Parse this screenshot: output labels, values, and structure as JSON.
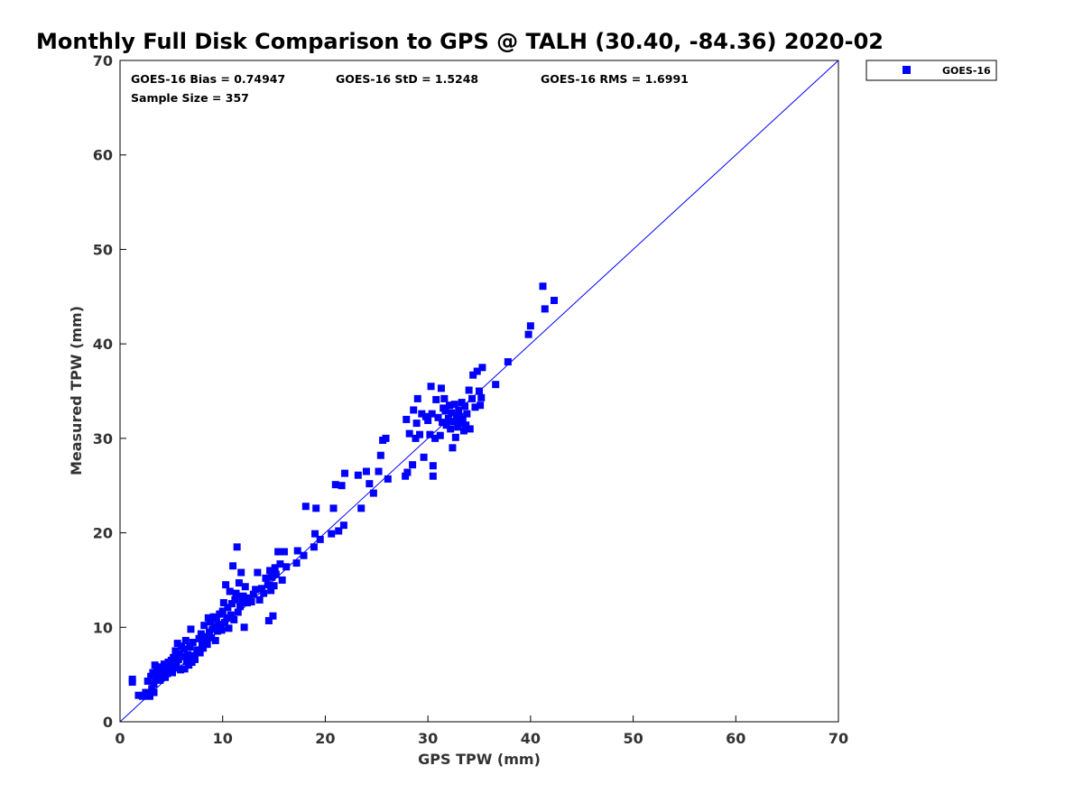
{
  "chart_data": {
    "type": "scatter",
    "title": "Monthly Full Disk Comparison to GPS @ TALH (30.40, -84.36) 2020-02",
    "xlabel": "GPS TPW (mm)",
    "ylabel": "Measured TPW (mm)",
    "xlim": [
      0,
      70
    ],
    "ylim": [
      0,
      70
    ],
    "xticks": [
      "0",
      "10",
      "20",
      "30",
      "40",
      "50",
      "60",
      "70"
    ],
    "yticks": [
      "0",
      "10",
      "20",
      "30",
      "40",
      "50",
      "60",
      "70"
    ],
    "grid": false,
    "legend_position": "outside-top-right",
    "stats": {
      "bias": "GOES-16 Bias = 0.74947",
      "std": "GOES-16 StD = 1.5248",
      "rms": "GOES-16 RMS = 1.6991",
      "sample": "Sample Size = 357"
    },
    "reference_line": {
      "x": [
        0,
        70
      ],
      "y": [
        0,
        70
      ],
      "color": "#0000ff"
    },
    "series": [
      {
        "name": "GOES-16",
        "color": "#0000ff",
        "marker": "square",
        "points": [
          [
            1.2,
            4.5
          ],
          [
            1.2,
            4.2
          ],
          [
            1.8,
            2.8
          ],
          [
            2.2,
            2.7
          ],
          [
            2.5,
            3.1
          ],
          [
            2.6,
            2.8
          ],
          [
            2.8,
            3.0
          ],
          [
            2.9,
            2.7
          ],
          [
            2.7,
            4.3
          ],
          [
            3.0,
            4.8
          ],
          [
            3.1,
            3.5
          ],
          [
            3.2,
            5.2
          ],
          [
            3.3,
            4.0
          ],
          [
            3.4,
            6.0
          ],
          [
            3.5,
            4.6
          ],
          [
            3.6,
            5.5
          ],
          [
            3.3,
            3.1
          ],
          [
            3.8,
            5.0
          ],
          [
            3.9,
            4.4
          ],
          [
            4.0,
            5.8
          ],
          [
            4.1,
            4.9
          ],
          [
            4.2,
            5.3
          ],
          [
            4.3,
            6.1
          ],
          [
            4.4,
            4.7
          ],
          [
            4.5,
            5.6
          ],
          [
            4.6,
            5.1
          ],
          [
            4.7,
            6.3
          ],
          [
            4.8,
            5.4
          ],
          [
            4.9,
            5.9
          ],
          [
            5.0,
            6.5
          ],
          [
            5.1,
            5.2
          ],
          [
            5.2,
            6.8
          ],
          [
            5.3,
            5.7
          ],
          [
            5.4,
            7.5
          ],
          [
            5.5,
            6.1
          ],
          [
            5.6,
            8.3
          ],
          [
            5.7,
            6.6
          ],
          [
            5.8,
            7.2
          ],
          [
            5.9,
            5.5
          ],
          [
            6.0,
            8.0
          ],
          [
            6.1,
            6.9
          ],
          [
            6.2,
            7.7
          ],
          [
            6.3,
            5.6
          ],
          [
            6.4,
            8.6
          ],
          [
            6.5,
            6.4
          ],
          [
            6.6,
            7.1
          ],
          [
            6.7,
            6.0
          ],
          [
            6.8,
            7.9
          ],
          [
            6.9,
            9.8
          ],
          [
            7.0,
            6.3
          ],
          [
            7.1,
            8.4
          ],
          [
            7.2,
            7.0
          ],
          [
            7.3,
            6.6
          ],
          [
            7.5,
            7.6
          ],
          [
            7.7,
            8.8
          ],
          [
            7.8,
            7.3
          ],
          [
            7.9,
            9.3
          ],
          [
            8.0,
            8.1
          ],
          [
            8.1,
            7.8
          ],
          [
            8.2,
            10.2
          ],
          [
            8.3,
            8.6
          ],
          [
            8.4,
            9.0
          ],
          [
            8.5,
            8.2
          ],
          [
            8.6,
            11.0
          ],
          [
            8.7,
            9.5
          ],
          [
            8.8,
            10.6
          ],
          [
            8.9,
            8.9
          ],
          [
            9.0,
            9.8
          ],
          [
            9.1,
            11.1
          ],
          [
            9.2,
            10.1
          ],
          [
            9.3,
            8.6
          ],
          [
            9.4,
            10.9
          ],
          [
            9.5,
            9.6
          ],
          [
            9.6,
            10.3
          ],
          [
            9.7,
            11.4
          ],
          [
            9.8,
            10.0
          ],
          [
            9.9,
            9.7
          ],
          [
            10.0,
            11.7
          ],
          [
            10.1,
            12.6
          ],
          [
            10.2,
            10.5
          ],
          [
            10.3,
            14.5
          ],
          [
            10.4,
            11.0
          ],
          [
            10.5,
            12.1
          ],
          [
            10.6,
            9.9
          ],
          [
            10.7,
            13.8
          ],
          [
            10.8,
            11.3
          ],
          [
            10.9,
            12.5
          ],
          [
            11.0,
            16.5
          ],
          [
            11.1,
            10.8
          ],
          [
            11.2,
            12.9
          ],
          [
            11.3,
            13.6
          ],
          [
            11.4,
            18.5
          ],
          [
            11.5,
            11.6
          ],
          [
            11.6,
            14.7
          ],
          [
            11.7,
            12.2
          ],
          [
            11.8,
            15.8
          ],
          [
            11.9,
            12.9
          ],
          [
            12.0,
            13.3
          ],
          [
            12.1,
            10.0
          ],
          [
            12.2,
            14.3
          ],
          [
            12.4,
            12.6
          ],
          [
            12.6,
            13.1
          ],
          [
            12.8,
            12.7
          ],
          [
            13.0,
            13.5
          ],
          [
            13.2,
            14.0
          ],
          [
            13.4,
            15.8
          ],
          [
            13.6,
            12.9
          ],
          [
            13.8,
            14.1
          ],
          [
            14.0,
            13.6
          ],
          [
            14.2,
            15.2
          ],
          [
            14.4,
            14.5
          ],
          [
            14.5,
            10.7
          ],
          [
            14.6,
            16.0
          ],
          [
            14.7,
            13.9
          ],
          [
            14.8,
            15.3
          ],
          [
            14.9,
            11.2
          ],
          [
            15.0,
            14.4
          ],
          [
            15.1,
            16.3
          ],
          [
            15.2,
            15.6
          ],
          [
            15.4,
            18.0
          ],
          [
            15.6,
            16.7
          ],
          [
            15.8,
            15.0
          ],
          [
            16.0,
            18.0
          ],
          [
            16.2,
            16.4
          ],
          [
            17.2,
            16.8
          ],
          [
            17.3,
            18.1
          ],
          [
            17.9,
            17.6
          ],
          [
            18.1,
            22.8
          ],
          [
            18.9,
            18.5
          ],
          [
            19.0,
            19.9
          ],
          [
            19.1,
            22.6
          ],
          [
            19.5,
            19.3
          ],
          [
            20.6,
            19.9
          ],
          [
            20.8,
            22.6
          ],
          [
            21.0,
            25.1
          ],
          [
            21.3,
            20.2
          ],
          [
            21.6,
            25.0
          ],
          [
            21.8,
            20.8
          ],
          [
            21.9,
            26.3
          ],
          [
            23.2,
            26.1
          ],
          [
            23.5,
            22.6
          ],
          [
            24.0,
            26.5
          ],
          [
            24.3,
            25.2
          ],
          [
            24.7,
            24.2
          ],
          [
            25.2,
            26.5
          ],
          [
            25.4,
            28.2
          ],
          [
            25.6,
            29.8
          ],
          [
            25.9,
            30.0
          ],
          [
            26.1,
            25.7
          ],
          [
            27.8,
            26.0
          ],
          [
            27.9,
            32.0
          ],
          [
            28.0,
            26.4
          ],
          [
            28.2,
            30.5
          ],
          [
            28.5,
            27.2
          ],
          [
            28.6,
            33.0
          ],
          [
            28.8,
            30.0
          ],
          [
            28.9,
            31.6
          ],
          [
            29.0,
            34.2
          ],
          [
            29.2,
            30.4
          ],
          [
            29.4,
            32.6
          ],
          [
            29.6,
            28.0
          ],
          [
            29.8,
            32.3
          ],
          [
            30.0,
            31.9
          ],
          [
            30.2,
            30.4
          ],
          [
            30.3,
            35.5
          ],
          [
            30.4,
            32.6
          ],
          [
            30.5,
            27.1
          ],
          [
            30.5,
            26.0
          ],
          [
            30.7,
            30.0
          ],
          [
            30.8,
            34.1
          ],
          [
            31.0,
            32.2
          ],
          [
            31.2,
            30.3
          ],
          [
            31.3,
            35.3
          ],
          [
            31.4,
            31.7
          ],
          [
            31.5,
            33.2
          ],
          [
            31.6,
            34.2
          ],
          [
            31.7,
            32.9
          ],
          [
            31.8,
            31.4
          ],
          [
            32.0,
            32.1
          ],
          [
            32.1,
            33.5
          ],
          [
            32.2,
            31.0
          ],
          [
            32.3,
            32.7
          ],
          [
            32.4,
            29.0
          ],
          [
            32.5,
            31.8
          ],
          [
            32.6,
            33.6
          ],
          [
            32.7,
            30.1
          ],
          [
            32.8,
            32.4
          ],
          [
            32.9,
            31.2
          ],
          [
            33.0,
            33.0
          ],
          [
            33.1,
            32.3
          ],
          [
            33.2,
            31.6
          ],
          [
            33.3,
            33.8
          ],
          [
            33.4,
            32.0
          ],
          [
            33.5,
            30.8
          ],
          [
            33.6,
            33.4
          ],
          [
            33.7,
            31.4
          ],
          [
            33.8,
            32.6
          ],
          [
            34.0,
            35.1
          ],
          [
            34.1,
            31.0
          ],
          [
            34.3,
            34.2
          ],
          [
            34.4,
            36.7
          ],
          [
            34.6,
            33.3
          ],
          [
            34.8,
            37.1
          ],
          [
            35.0,
            35.0
          ],
          [
            35.1,
            33.5
          ],
          [
            35.2,
            34.3
          ],
          [
            35.3,
            37.5
          ],
          [
            36.6,
            35.7
          ],
          [
            37.8,
            38.1
          ],
          [
            39.8,
            41.0
          ],
          [
            40.0,
            41.9
          ],
          [
            41.2,
            46.1
          ],
          [
            41.4,
            43.7
          ],
          [
            42.3,
            44.6
          ]
        ]
      }
    ]
  }
}
